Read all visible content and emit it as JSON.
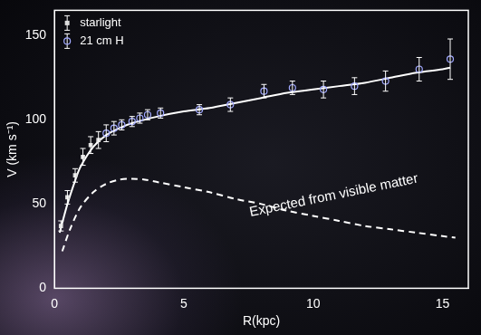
{
  "chart_data": {
    "type": "scatter",
    "x_label": "R(kpc)",
    "y_label": "V (km s⁻¹)",
    "xlim": [
      0,
      16
    ],
    "xticks": [
      0,
      5,
      10,
      15
    ],
    "ylim": [
      0,
      165
    ],
    "yticks": [
      0,
      50,
      100,
      150
    ],
    "grid": false,
    "legend": "upper left",
    "series": [
      {
        "name": "starlight",
        "type": "scatter",
        "marker": "square",
        "color": "#dddddd",
        "x": [
          0.25,
          0.5,
          0.8,
          1.1,
          1.4,
          1.7
        ],
        "values": [
          37,
          54,
          67,
          78,
          85,
          88
        ],
        "errors": [
          3,
          4,
          4,
          5,
          5,
          5
        ]
      },
      {
        "name": "21 cm H",
        "type": "scatter",
        "marker": "circle",
        "color": "#a0a8ff",
        "x": [
          2.0,
          2.3,
          2.6,
          3.0,
          3.3,
          3.6,
          4.1,
          5.6,
          6.8,
          8.1,
          9.2,
          10.4,
          11.6,
          12.8,
          14.1,
          15.3
        ],
        "values": [
          92,
          95,
          97,
          99,
          101,
          103,
          104,
          106,
          109,
          117,
          119,
          118,
          120,
          123,
          130,
          136
        ],
        "errors": [
          5,
          4,
          3,
          3,
          3,
          3,
          3,
          3,
          4,
          4,
          4,
          5,
          5,
          6,
          7,
          12
        ]
      },
      {
        "type": "line",
        "marker": "none",
        "line_style": "solid",
        "color": "#ffffff",
        "x": [
          0.2,
          0.5,
          0.8,
          1.0,
          1.5,
          2.0,
          2.5,
          3.0,
          4.0,
          5.0,
          6.0,
          7.0,
          8.0,
          9.0,
          10.0,
          11.0,
          12.0,
          13.0,
          14.0,
          15.0,
          15.3
        ],
        "values": [
          33,
          50,
          64,
          72,
          84,
          91,
          95,
          98,
          102,
          105,
          107,
          110,
          113,
          116,
          118,
          120,
          122,
          125,
          128,
          130,
          131
        ]
      },
      {
        "type": "line",
        "marker": "none",
        "line_style": "dashed",
        "color": "#ffffff",
        "x": [
          0.3,
          0.6,
          1.0,
          1.5,
          2.0,
          2.5,
          3.0,
          3.5,
          4.0,
          5.0,
          6.0,
          7.0,
          8.0,
          9.0,
          10.0,
          11.0,
          12.0,
          13.0,
          14.0,
          15.0,
          15.5
        ],
        "values": [
          22,
          35,
          48,
          57,
          62,
          64.5,
          65,
          64.5,
          63,
          60,
          57,
          53,
          50,
          46,
          43,
          40,
          37,
          35,
          33,
          31,
          30
        ]
      }
    ],
    "annotations": [
      {
        "text": "Expected from visible matter",
        "x": 10.8,
        "y": 55
      }
    ]
  }
}
